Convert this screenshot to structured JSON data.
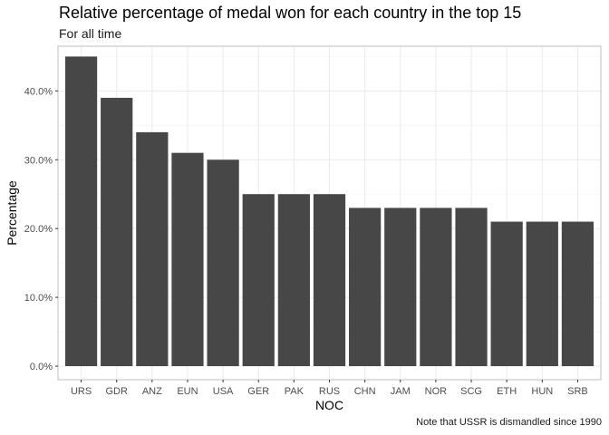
{
  "chart_data": {
    "type": "bar",
    "title": "Relative percentage of medal won for each country in the top 15",
    "subtitle": "For all time",
    "caption": "Note that USSR is dismandled since 1990",
    "xlabel": "NOC",
    "ylabel": "Percentage",
    "categories": [
      "URS",
      "GDR",
      "ANZ",
      "EUN",
      "USA",
      "GER",
      "PAK",
      "RUS",
      "CHN",
      "JAM",
      "NOR",
      "SCG",
      "ETH",
      "HUN",
      "SRB"
    ],
    "values": [
      45,
      39,
      34,
      31,
      30,
      25,
      25,
      25,
      23,
      23,
      23,
      23,
      21,
      21,
      21
    ],
    "ylim": [
      0,
      46.5
    ],
    "yticks": [
      0,
      10,
      20,
      30,
      40
    ],
    "ytick_labels": [
      "0.0%",
      "10.0%",
      "20.0%",
      "30.0%",
      "40.0%"
    ],
    "grid": true,
    "bar_color": "#474747",
    "grid_color": "#ebebeb",
    "panel_border_color": "#bfbfbf"
  }
}
